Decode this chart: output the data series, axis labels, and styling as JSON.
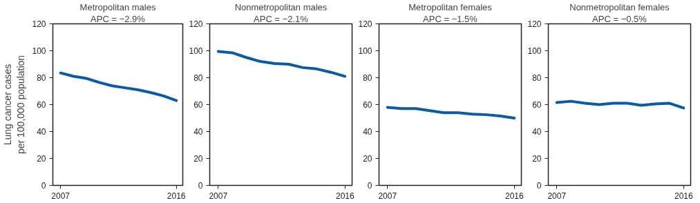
{
  "chart_data": [
    {
      "type": "line",
      "title": "Metropolitan males",
      "subtitle": "APC = −2.9%",
      "ylabel": "Lung cancer cases\nper 100,000 population",
      "x": [
        2007,
        2008,
        2009,
        2010,
        2011,
        2012,
        2013,
        2014,
        2015,
        2016
      ],
      "values": [
        83.5,
        81,
        79.5,
        76.5,
        74,
        72.5,
        71,
        69,
        66.5,
        63
      ],
      "color": "#0a5aa8",
      "xlim": [
        2006.4,
        2016.5
      ],
      "xticks": [
        2007,
        2016
      ],
      "ylim": [
        0,
        120
      ],
      "yticks": [
        0,
        20,
        40,
        60,
        80,
        100,
        120
      ],
      "grid": false,
      "marker": "none",
      "line_style": "solid"
    },
    {
      "type": "line",
      "title": "Nonmetropolitan males",
      "subtitle": "APC = −2.1%",
      "x": [
        2007,
        2008,
        2009,
        2010,
        2011,
        2012,
        2013,
        2014,
        2015,
        2016
      ],
      "values": [
        99.5,
        98.5,
        95,
        92,
        90.5,
        90,
        87.5,
        86.5,
        84,
        81
      ],
      "color": "#0a5aa8",
      "xlim": [
        2006.4,
        2016.5
      ],
      "xticks": [
        2007,
        2016
      ],
      "ylim": [
        0,
        120
      ],
      "yticks": [
        0,
        20,
        40,
        60,
        80,
        100,
        120
      ],
      "grid": false,
      "marker": "none",
      "line_style": "solid"
    },
    {
      "type": "line",
      "title": "Metropolitan females",
      "subtitle": "APC = −1.5%",
      "x": [
        2007,
        2008,
        2009,
        2010,
        2011,
        2012,
        2013,
        2014,
        2015,
        2016
      ],
      "values": [
        58,
        57,
        57,
        55.5,
        54,
        54,
        53,
        52.5,
        51.5,
        50
      ],
      "color": "#0a5aa8",
      "xlim": [
        2006.4,
        2016.5
      ],
      "xticks": [
        2007,
        2016
      ],
      "ylim": [
        0,
        120
      ],
      "yticks": [
        0,
        20,
        40,
        60,
        80,
        100,
        120
      ],
      "grid": false,
      "marker": "none",
      "line_style": "solid"
    },
    {
      "type": "line",
      "title": "Nonmetropolitan females",
      "subtitle": "APC = −0.5%",
      "x": [
        2007,
        2008,
        2009,
        2010,
        2011,
        2012,
        2013,
        2014,
        2015,
        2016
      ],
      "values": [
        61.5,
        62.5,
        61,
        60,
        61,
        61,
        59.5,
        60.5,
        61,
        57.5
      ],
      "color": "#0a5aa8",
      "xlim": [
        2006.4,
        2016.5
      ],
      "xticks": [
        2007,
        2016
      ],
      "ylim": [
        0,
        120
      ],
      "yticks": [
        0,
        20,
        40,
        60,
        80,
        100,
        120
      ],
      "grid": false,
      "marker": "none",
      "line_style": "solid"
    }
  ]
}
